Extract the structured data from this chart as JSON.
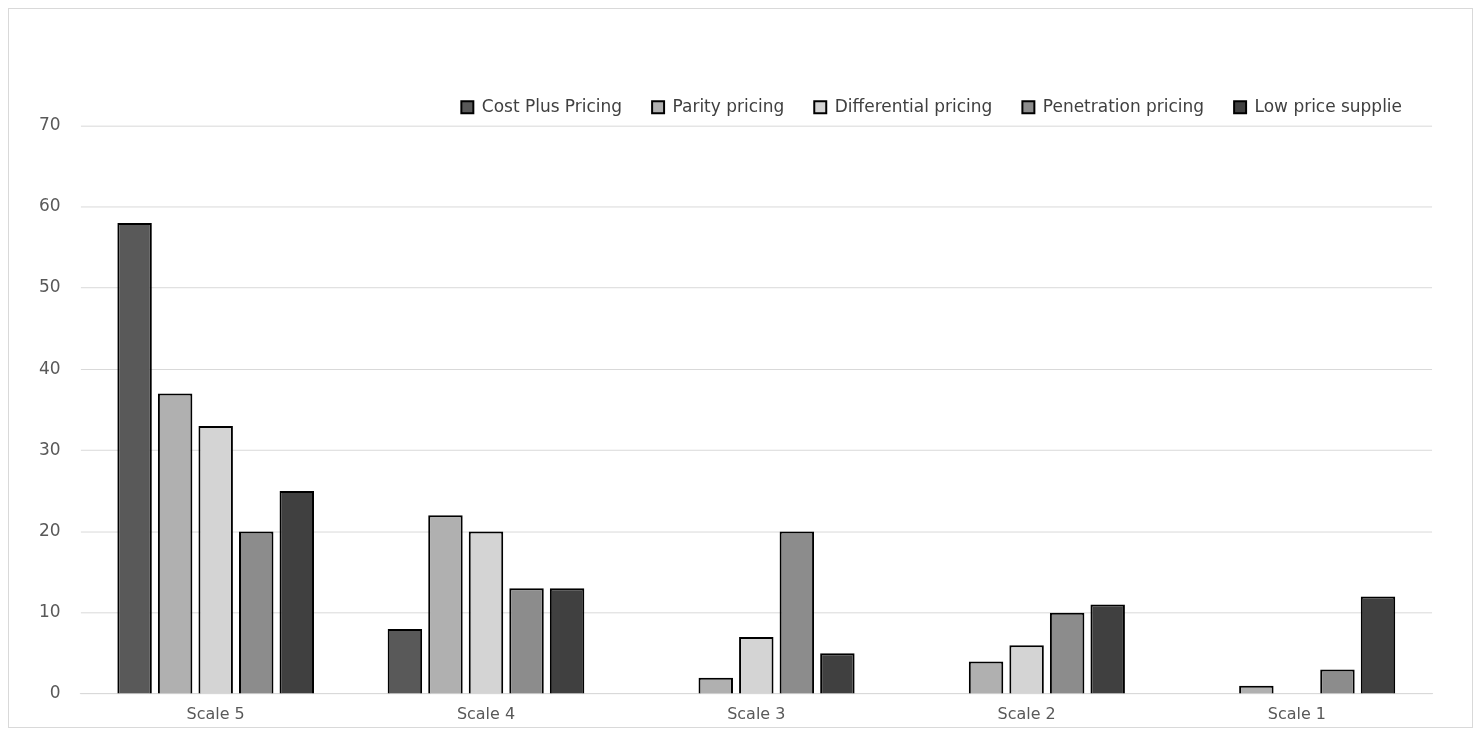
{
  "chart_data": {
    "type": "bar",
    "categories": [
      "Scale 5",
      "Scale 4",
      "Scale 3",
      "Scale 2",
      "Scale 1"
    ],
    "series": [
      {
        "name": "Cost Plus Pricing",
        "color": "#595959",
        "values": [
          58,
          8,
          0,
          0,
          0
        ]
      },
      {
        "name": "Parity pricing",
        "color": "#b0b0b0",
        "values": [
          37,
          22,
          2,
          4,
          1
        ]
      },
      {
        "name": "Differential pricing",
        "color": "#d4d4d4",
        "values": [
          33,
          20,
          7,
          6,
          0
        ]
      },
      {
        "name": "Penetration pricing",
        "color": "#8c8c8c",
        "values": [
          20,
          13,
          20,
          10,
          3
        ]
      },
      {
        "name": "Low price supplie",
        "color": "#404040",
        "values": [
          25,
          13,
          5,
          11,
          12
        ]
      }
    ],
    "ylim": [
      0,
      70
    ],
    "yticks": [
      0,
      10,
      20,
      30,
      40,
      50,
      60,
      70
    ],
    "grid": "y",
    "legend": "top"
  }
}
